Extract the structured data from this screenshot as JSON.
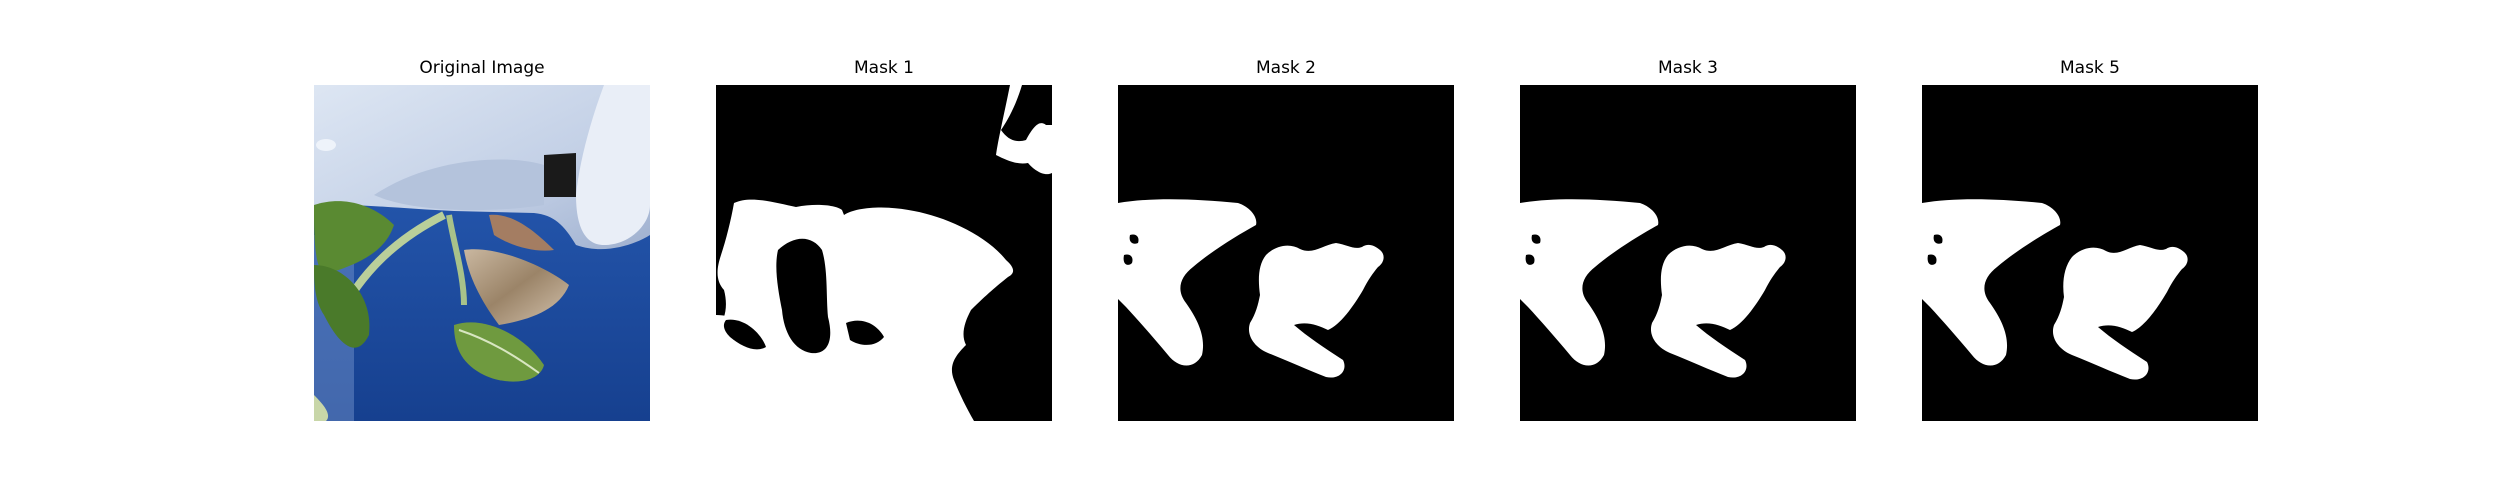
{
  "figure": {
    "panels": [
      {
        "title": "Original Image",
        "kind": "photo"
      },
      {
        "title": "Mask 1",
        "kind": "mask"
      },
      {
        "title": "Mask 2",
        "kind": "mask"
      },
      {
        "title": "Mask 3",
        "kind": "mask"
      },
      {
        "title": "Mask 5",
        "kind": "mask"
      }
    ]
  },
  "colors": {
    "background": "#ffffff",
    "mask_bg": "#000000",
    "mask_fg": "#ffffff",
    "sky": "#1f4fa8",
    "machine": "#c7d4e8",
    "leaf": "#4e7d2c",
    "dry_leaf": "#b19c83"
  }
}
